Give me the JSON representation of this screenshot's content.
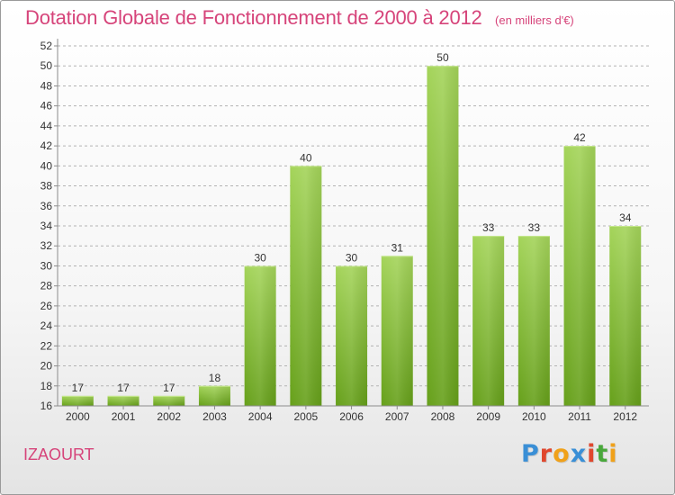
{
  "title": "Dotation Globale de Fonctionnement de 2000 à 2012",
  "subtitle": "(en milliers d'€)",
  "location": "IZAOURT",
  "logo": {
    "letters": [
      "P",
      "r",
      "o",
      "x",
      "i",
      "t",
      "i"
    ],
    "colors": [
      "#3a8fd6",
      "#e0472d",
      "#f0a11a",
      "#3a8fd6",
      "#e0472d",
      "#49a83c",
      "#f0a11a"
    ]
  },
  "colors": {
    "title": "#d6447a",
    "bar_light": "#a4d45a",
    "bar_dark": "#66a01a",
    "grid": "#b3b3b3",
    "axis": "#8c8c8c"
  },
  "chart_data": {
    "type": "bar",
    "categories": [
      "2000",
      "2001",
      "2002",
      "2003",
      "2004",
      "2005",
      "2006",
      "2007",
      "2008",
      "2009",
      "2010",
      "2011",
      "2012"
    ],
    "values": [
      17,
      17,
      17,
      18,
      30,
      40,
      30,
      31,
      50,
      33,
      33,
      42,
      34
    ],
    "ylim": [
      16,
      52
    ],
    "yticks": [
      "16",
      "18",
      "20",
      "22",
      "24",
      "26",
      "28",
      "30",
      "32",
      "34",
      "36",
      "38",
      "40",
      "42",
      "44",
      "46",
      "48",
      "50",
      "52"
    ],
    "grid": "dashed horizontal",
    "legend": "none",
    "data_labels": true
  }
}
